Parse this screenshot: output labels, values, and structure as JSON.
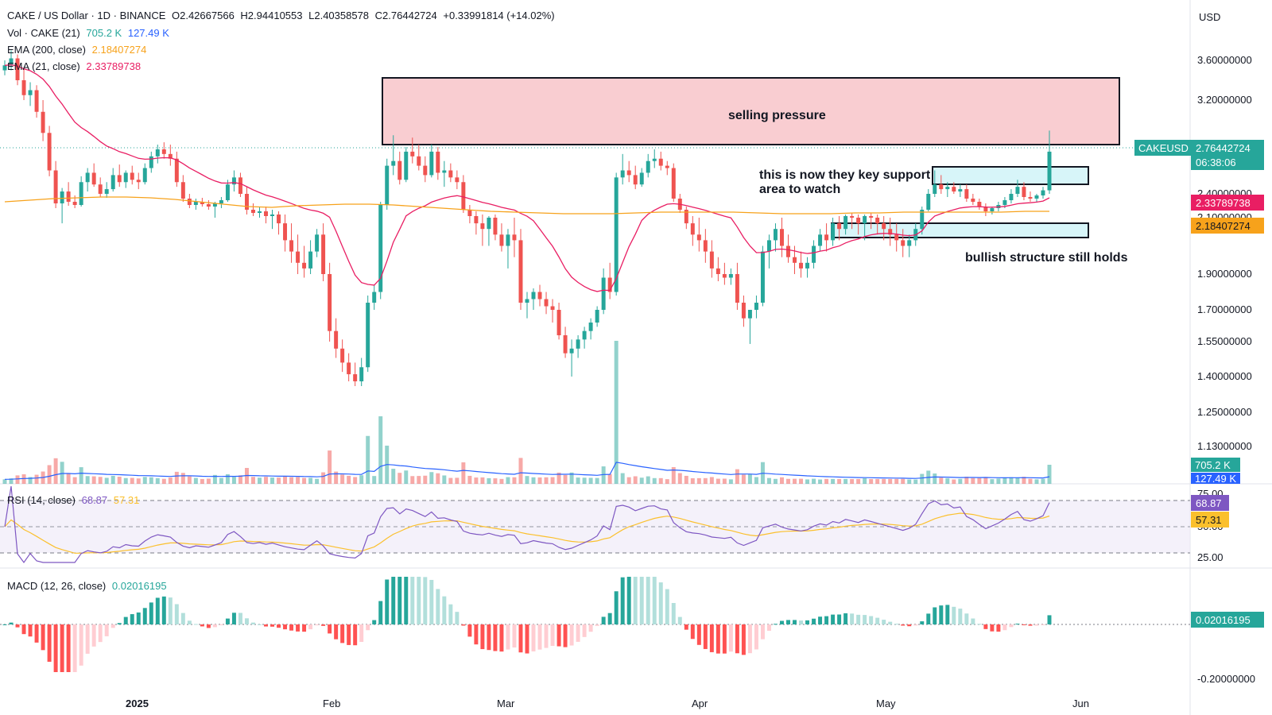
{
  "header": {
    "symbol": "CAKE / US Dollar · 1D · BINANCE",
    "open": "O2.42667566",
    "high": "H2.94410553",
    "low": "L2.40358578",
    "close": "C2.76442724",
    "change": "+0.33991814 (+14.02%)",
    "currency": "USD"
  },
  "indicators": {
    "vol_label": "Vol · CAKE (21)",
    "vol_value": "705.2 K",
    "vol_ma": "127.49 K",
    "ema200_label": "EMA (200, close)",
    "ema200_value": "2.18407274",
    "ema21_label": "EMA (21, close)",
    "ema21_value": "2.33789738",
    "rsi_label": "RSI (14, close)",
    "rsi_value": "68.87",
    "rsi_ma": "57.31",
    "macd_label": "MACD (12, 26, close)",
    "macd_value": "0.02016195"
  },
  "price_tags": {
    "symbol_tag": "CAKEUSD",
    "last_price": "2.76442724",
    "countdown": "06:38:06",
    "ema21": "2.33789738",
    "ema200": "2.18407274",
    "vol": "705.2 K",
    "vol_ma": "127.49 K",
    "rsi": "68.87",
    "rsi_ma": "57.31",
    "macd": "0.02016195"
  },
  "annotations": {
    "selling_pressure": "selling pressure",
    "support_line1": "this is now they key support",
    "support_line2": "area to watch",
    "bullish": "bullish structure still holds"
  },
  "colors": {
    "up": "#26a69a",
    "down": "#ef5350",
    "ema21": "#e91e63",
    "ema200": "#f7a21b",
    "vol_ma": "#2962ff",
    "rsi": "#7e57c2",
    "rsi_ma": "#fbc02d",
    "resistance_fill": "#f8c8cc",
    "support_fill": "#d3f4f8",
    "hist_up_strong": "#26a69a",
    "hist_up_weak": "#b2dfdb",
    "hist_down_strong": "#ff5252",
    "hist_down_weak": "#ffcdd2"
  },
  "chart_data": {
    "type": "candlestick",
    "price_axis_ticks": [
      "3.60000000",
      "3.20000000",
      "2.40000000",
      "2.10000000",
      "1.90000000",
      "1.70000000",
      "1.55000000",
      "1.40000000",
      "1.25000000",
      "1.13000000"
    ],
    "rsi_axis_ticks": [
      "75.00",
      "50.00",
      "25.00"
    ],
    "macd_axis_ticks": [
      "-0.20000000"
    ],
    "x_labels": [
      "2025",
      "Feb",
      "Mar",
      "Apr",
      "May",
      "Jun"
    ],
    "zones": [
      {
        "label": "selling pressure",
        "price_low": 2.78,
        "price_high": 3.42
      },
      {
        "label": "key support",
        "price_low": 2.51,
        "price_high": 2.62
      },
      {
        "label": "bullish structure",
        "price_low": 2.11,
        "price_high": 2.17
      }
    ],
    "candles": [
      [
        3.5,
        3.6,
        3.45,
        3.55
      ],
      [
        3.55,
        3.7,
        3.5,
        3.62
      ],
      [
        3.62,
        3.66,
        3.35,
        3.4
      ],
      [
        3.4,
        3.52,
        3.2,
        3.25
      ],
      [
        3.25,
        3.38,
        3.15,
        3.3
      ],
      [
        3.3,
        3.35,
        3.05,
        3.1
      ],
      [
        3.1,
        3.2,
        2.85,
        2.92
      ],
      [
        2.92,
        2.98,
        2.55,
        2.6
      ],
      [
        2.6,
        2.68,
        2.22,
        2.28
      ],
      [
        2.28,
        2.45,
        2.08,
        2.42
      ],
      [
        2.42,
        2.5,
        2.25,
        2.3
      ],
      [
        2.3,
        2.38,
        2.22,
        2.26
      ],
      [
        2.26,
        2.55,
        2.24,
        2.5
      ],
      [
        2.5,
        2.62,
        2.42,
        2.58
      ],
      [
        2.58,
        2.66,
        2.46,
        2.48
      ],
      [
        2.48,
        2.54,
        2.36,
        2.4
      ],
      [
        2.4,
        2.5,
        2.35,
        2.44
      ],
      [
        2.44,
        2.62,
        2.42,
        2.56
      ],
      [
        2.56,
        2.65,
        2.46,
        2.5
      ],
      [
        2.5,
        2.6,
        2.45,
        2.58
      ],
      [
        2.58,
        2.64,
        2.48,
        2.52
      ],
      [
        2.52,
        2.58,
        2.44,
        2.5
      ],
      [
        2.5,
        2.66,
        2.48,
        2.62
      ],
      [
        2.62,
        2.76,
        2.58,
        2.72
      ],
      [
        2.72,
        2.82,
        2.66,
        2.78
      ],
      [
        2.78,
        2.84,
        2.7,
        2.74
      ],
      [
        2.74,
        2.82,
        2.64,
        2.7
      ],
      [
        2.7,
        2.76,
        2.46,
        2.5
      ],
      [
        2.5,
        2.56,
        2.3,
        2.34
      ],
      [
        2.34,
        2.4,
        2.22,
        2.26
      ],
      [
        2.26,
        2.34,
        2.2,
        2.3
      ],
      [
        2.3,
        2.35,
        2.24,
        2.27
      ],
      [
        2.27,
        2.32,
        2.2,
        2.24
      ],
      [
        2.24,
        2.3,
        2.1,
        2.28
      ],
      [
        2.28,
        2.36,
        2.22,
        2.32
      ],
      [
        2.32,
        2.52,
        2.3,
        2.48
      ],
      [
        2.48,
        2.6,
        2.42,
        2.54
      ],
      [
        2.54,
        2.58,
        2.36,
        2.4
      ],
      [
        2.4,
        2.46,
        2.14,
        2.2
      ],
      [
        2.2,
        2.28,
        2.12,
        2.16
      ],
      [
        2.16,
        2.24,
        2.1,
        2.18
      ],
      [
        2.18,
        2.24,
        2.08,
        2.12
      ],
      [
        2.12,
        2.2,
        2.06,
        2.14
      ],
      [
        2.14,
        2.18,
        2.04,
        2.08
      ],
      [
        2.08,
        2.14,
        1.98,
        2.02
      ],
      [
        2.02,
        2.08,
        1.94,
        1.98
      ],
      [
        1.98,
        2.04,
        1.9,
        1.94
      ],
      [
        1.94,
        2.0,
        1.88,
        1.92
      ],
      [
        1.92,
        2.02,
        1.9,
        1.98
      ],
      [
        1.98,
        2.06,
        1.96,
        2.04
      ],
      [
        2.04,
        2.08,
        1.86,
        1.9
      ],
      [
        1.9,
        1.94,
        1.55,
        1.6
      ],
      [
        1.6,
        1.66,
        1.48,
        1.52
      ],
      [
        1.52,
        1.56,
        1.42,
        1.46
      ],
      [
        1.46,
        1.5,
        1.38,
        1.41
      ],
      [
        1.41,
        1.46,
        1.36,
        1.38
      ],
      [
        1.38,
        1.48,
        1.36,
        1.44
      ],
      [
        1.44,
        1.78,
        1.42,
        1.74
      ],
      [
        1.74,
        1.84,
        1.7,
        1.8
      ],
      [
        1.8,
        2.3,
        1.76,
        2.26
      ],
      [
        2.26,
        2.7,
        2.2,
        2.64
      ],
      [
        2.64,
        2.9,
        2.56,
        2.68
      ],
      [
        2.68,
        2.76,
        2.48,
        2.52
      ],
      [
        2.52,
        2.8,
        2.5,
        2.76
      ],
      [
        2.76,
        2.88,
        2.66,
        2.72
      ],
      [
        2.72,
        2.82,
        2.6,
        2.64
      ],
      [
        2.64,
        2.72,
        2.5,
        2.56
      ],
      [
        2.56,
        2.82,
        2.54,
        2.76
      ],
      [
        2.76,
        2.8,
        2.52,
        2.58
      ],
      [
        2.58,
        2.68,
        2.46,
        2.6
      ],
      [
        2.6,
        2.66,
        2.5,
        2.54
      ],
      [
        2.54,
        2.6,
        2.44,
        2.5
      ],
      [
        2.5,
        2.56,
        2.16,
        2.2
      ],
      [
        2.2,
        2.26,
        2.08,
        2.12
      ],
      [
        2.12,
        2.18,
        2.04,
        2.08
      ],
      [
        2.08,
        2.14,
        2.0,
        2.06
      ],
      [
        2.06,
        2.12,
        2.0,
        2.1
      ],
      [
        2.1,
        2.14,
        2.02,
        2.04
      ],
      [
        2.04,
        2.08,
        1.98,
        2.0
      ],
      [
        2.0,
        2.06,
        1.92,
        2.04
      ],
      [
        2.04,
        2.1,
        1.96,
        2.02
      ],
      [
        2.02,
        2.06,
        1.7,
        1.74
      ],
      [
        1.74,
        1.8,
        1.66,
        1.76
      ],
      [
        1.76,
        1.82,
        1.7,
        1.8
      ],
      [
        1.8,
        1.84,
        1.72,
        1.76
      ],
      [
        1.76,
        1.8,
        1.68,
        1.72
      ],
      [
        1.72,
        1.76,
        1.64,
        1.7
      ],
      [
        1.7,
        1.74,
        1.56,
        1.58
      ],
      [
        1.58,
        1.62,
        1.48,
        1.5
      ],
      [
        1.5,
        1.56,
        1.4,
        1.52
      ],
      [
        1.52,
        1.58,
        1.48,
        1.56
      ],
      [
        1.56,
        1.62,
        1.52,
        1.6
      ],
      [
        1.6,
        1.66,
        1.56,
        1.64
      ],
      [
        1.64,
        1.72,
        1.62,
        1.7
      ],
      [
        1.7,
        1.92,
        1.68,
        1.88
      ],
      [
        1.88,
        1.94,
        1.76,
        1.8
      ],
      [
        1.8,
        2.58,
        1.78,
        2.54
      ],
      [
        2.54,
        2.74,
        2.48,
        2.6
      ],
      [
        2.6,
        2.68,
        2.5,
        2.56
      ],
      [
        2.56,
        2.64,
        2.44,
        2.48
      ],
      [
        2.48,
        2.62,
        2.46,
        2.58
      ],
      [
        2.58,
        2.74,
        2.54,
        2.68
      ],
      [
        2.68,
        2.78,
        2.62,
        2.7
      ],
      [
        2.7,
        2.76,
        2.6,
        2.64
      ],
      [
        2.64,
        2.68,
        2.56,
        2.62
      ],
      [
        2.62,
        2.66,
        2.3,
        2.34
      ],
      [
        2.34,
        2.4,
        2.16,
        2.2
      ],
      [
        2.2,
        2.24,
        2.06,
        2.08
      ],
      [
        2.08,
        2.12,
        2.0,
        2.04
      ],
      [
        2.04,
        2.1,
        1.98,
        2.02
      ],
      [
        2.02,
        2.06,
        1.94,
        1.98
      ],
      [
        1.98,
        2.02,
        1.88,
        1.92
      ],
      [
        1.92,
        1.96,
        1.86,
        1.9
      ],
      [
        1.9,
        1.94,
        1.84,
        1.88
      ],
      [
        1.88,
        1.92,
        1.84,
        1.9
      ],
      [
        1.9,
        1.94,
        1.7,
        1.74
      ],
      [
        1.74,
        1.78,
        1.62,
        1.66
      ],
      [
        1.66,
        1.7,
        1.54,
        1.7
      ],
      [
        1.7,
        1.78,
        1.66,
        1.74
      ],
      [
        1.74,
        2.0,
        1.72,
        1.98
      ],
      [
        1.98,
        2.04,
        1.92,
        2.02
      ],
      [
        2.02,
        2.08,
        1.98,
        2.06
      ],
      [
        2.06,
        2.1,
        1.96,
        2.0
      ],
      [
        2.0,
        2.04,
        1.94,
        1.96
      ],
      [
        1.96,
        2.0,
        1.9,
        1.94
      ],
      [
        1.94,
        1.98,
        1.88,
        1.92
      ],
      [
        1.92,
        1.96,
        1.88,
        1.94
      ],
      [
        1.94,
        2.02,
        1.92,
        2.0
      ],
      [
        2.0,
        2.06,
        1.98,
        2.04
      ],
      [
        2.04,
        2.08,
        1.98,
        2.02
      ],
      [
        2.02,
        2.1,
        2.0,
        2.08
      ],
      [
        2.08,
        2.12,
        2.02,
        2.06
      ],
      [
        2.06,
        2.14,
        2.04,
        2.12
      ],
      [
        2.12,
        2.16,
        2.06,
        2.1
      ],
      [
        2.1,
        2.14,
        2.04,
        2.08
      ],
      [
        2.08,
        2.14,
        2.02,
        2.12
      ],
      [
        2.12,
        2.16,
        2.06,
        2.1
      ],
      [
        2.1,
        2.14,
        2.04,
        2.08
      ],
      [
        2.08,
        2.12,
        2.02,
        2.06
      ],
      [
        2.06,
        2.1,
        2.0,
        2.04
      ],
      [
        2.04,
        2.08,
        1.98,
        2.02
      ],
      [
        2.02,
        2.06,
        1.96,
        2.0
      ],
      [
        2.0,
        2.04,
        1.96,
        2.02
      ],
      [
        2.02,
        2.08,
        2.0,
        2.06
      ],
      [
        2.06,
        2.24,
        2.04,
        2.2
      ],
      [
        2.2,
        2.44,
        2.18,
        2.4
      ],
      [
        2.4,
        2.6,
        2.36,
        2.48
      ],
      [
        2.48,
        2.56,
        2.4,
        2.44
      ],
      [
        2.44,
        2.5,
        2.36,
        2.46
      ],
      [
        2.46,
        2.5,
        2.4,
        2.42
      ],
      [
        2.42,
        2.48,
        2.36,
        2.44
      ],
      [
        2.44,
        2.48,
        2.3,
        2.34
      ],
      [
        2.34,
        2.4,
        2.26,
        2.3
      ],
      [
        2.3,
        2.34,
        2.2,
        2.24
      ],
      [
        2.24,
        2.28,
        2.12,
        2.18
      ],
      [
        2.18,
        2.24,
        2.14,
        2.22
      ],
      [
        2.22,
        2.3,
        2.18,
        2.26
      ],
      [
        2.26,
        2.36,
        2.22,
        2.32
      ],
      [
        2.32,
        2.44,
        2.28,
        2.4
      ],
      [
        2.4,
        2.52,
        2.36,
        2.46
      ],
      [
        2.46,
        2.5,
        2.32,
        2.36
      ],
      [
        2.36,
        2.42,
        2.3,
        2.34
      ],
      [
        2.34,
        2.4,
        2.3,
        2.38
      ],
      [
        2.38,
        2.46,
        2.34,
        2.43
      ],
      [
        2.43,
        2.94,
        2.4,
        2.76
      ]
    ],
    "ema21": [
      3.4,
      3.3,
      3.15,
      3.0,
      2.85,
      2.72,
      2.62,
      2.56,
      2.52,
      2.5,
      2.48,
      2.47,
      2.47,
      2.46,
      2.45,
      2.42,
      2.38,
      2.32,
      2.26,
      2.2,
      2.14,
      2.05,
      1.95,
      1.85,
      1.8,
      1.82,
      1.92,
      2.06,
      2.22,
      2.34,
      2.42,
      2.47,
      2.48,
      2.44,
      2.38,
      2.3,
      2.22,
      2.14,
      2.06,
      1.98,
      1.92,
      1.88,
      1.85,
      1.84,
      1.86,
      1.94,
      2.06,
      2.18,
      2.26,
      2.3,
      2.28,
      2.22,
      2.16,
      2.1,
      2.04,
      2.0,
      1.98,
      1.98,
      2.0,
      2.02,
      2.04,
      2.06,
      2.08,
      2.1,
      2.12,
      2.14,
      2.18,
      2.26,
      2.32,
      2.34,
      2.3,
      2.24,
      2.22,
      2.28,
      2.34,
      2.32,
      2.33,
      2.34
    ],
    "ema200": [
      2.3,
      2.32,
      2.34,
      2.35,
      2.36,
      2.36,
      2.35,
      2.33,
      2.3,
      2.27,
      2.24,
      2.23,
      2.25,
      2.26,
      2.27,
      2.27,
      2.26,
      2.24,
      2.22,
      2.2,
      2.18,
      2.17,
      2.16,
      2.15,
      2.15,
      2.15,
      2.16,
      2.17,
      2.17,
      2.17,
      2.17,
      2.16,
      2.15,
      2.15,
      2.15,
      2.16,
      2.16,
      2.17,
      2.17,
      2.17,
      2.17,
      2.17,
      2.18,
      2.18
    ]
  }
}
